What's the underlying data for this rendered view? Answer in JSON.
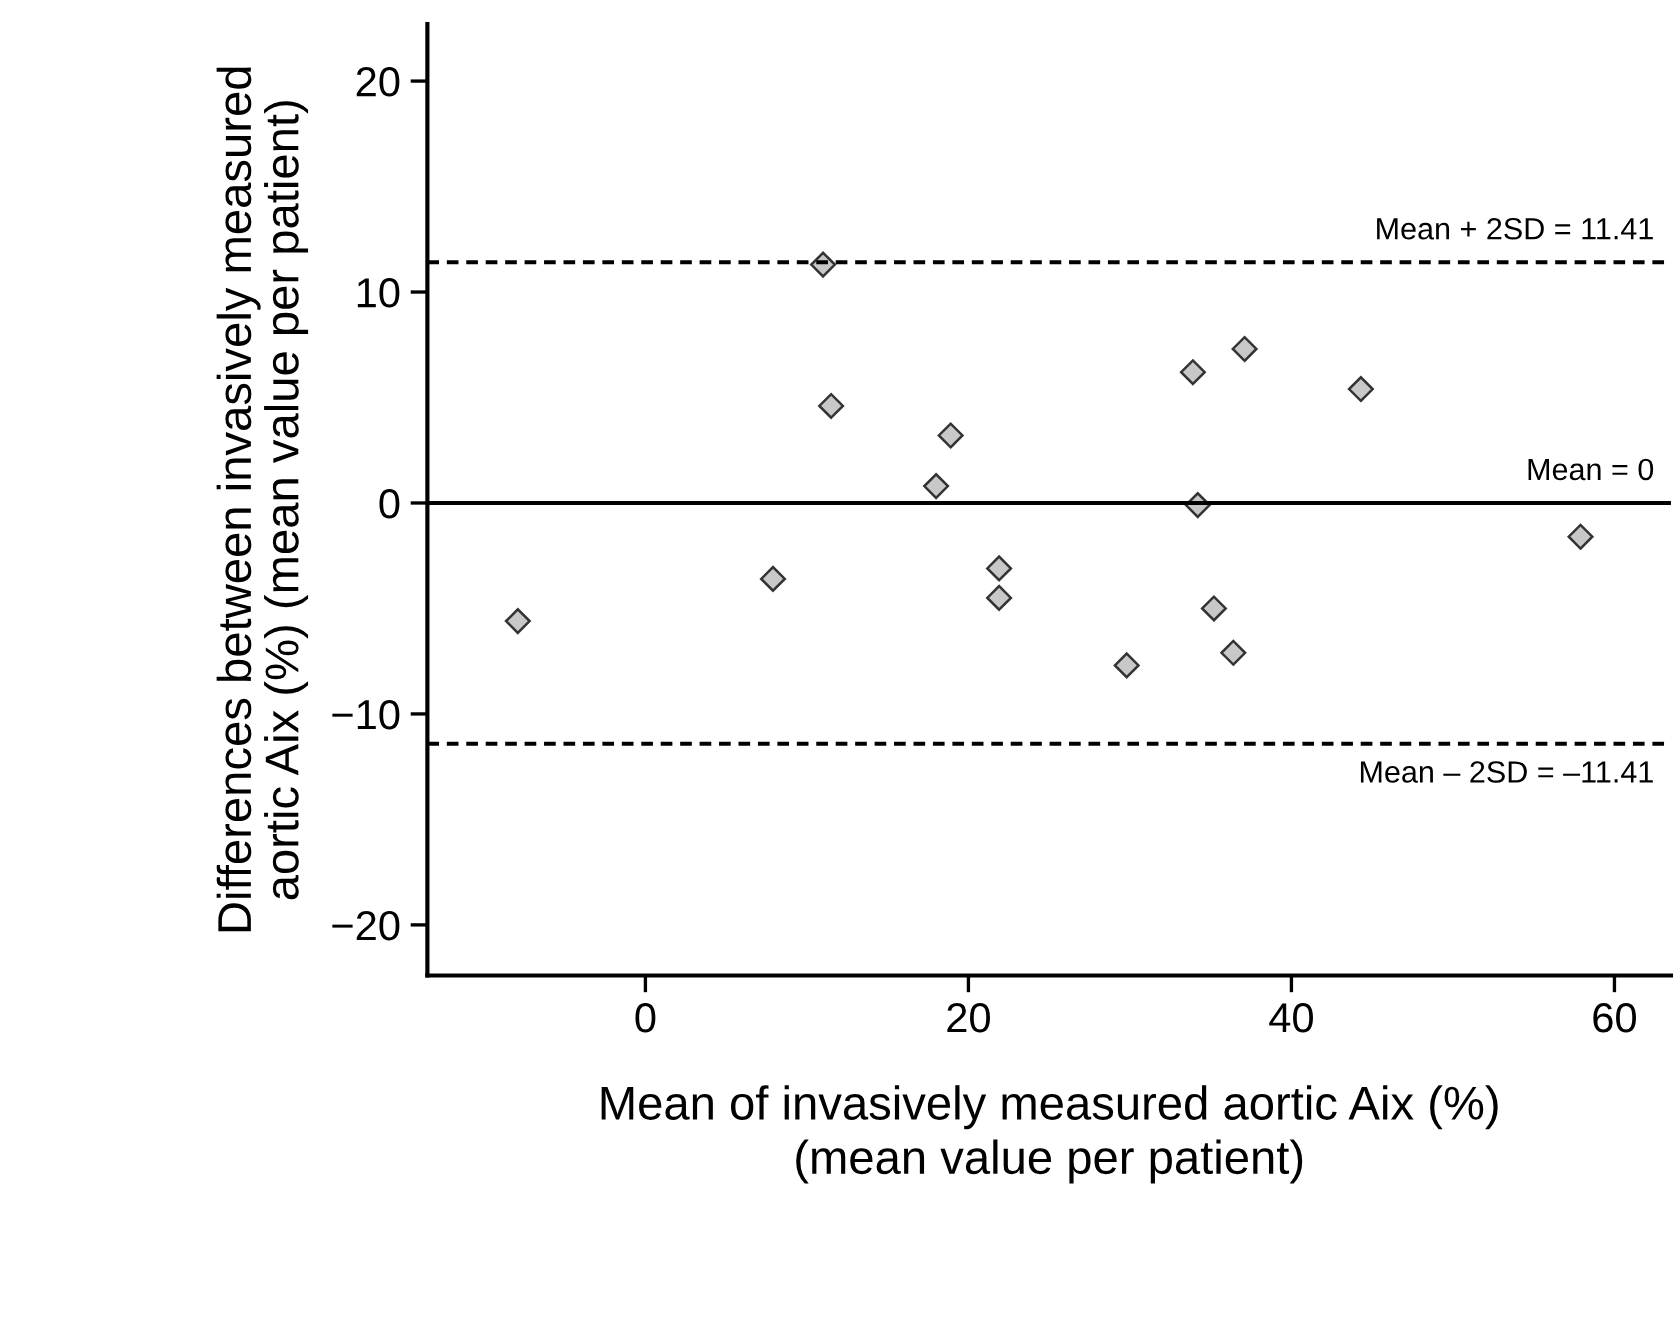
{
  "chart_data": {
    "type": "scatter",
    "xlabel": "Mean of invasively measured aortic Aix (%)\n(mean value per patient)",
    "ylabel": "Differences between invasively measured\naortic Aix (%) (mean value per patient)",
    "x": [
      -7.9,
      7.9,
      11.0,
      11.5,
      18.0,
      18.9,
      21.9,
      21.9,
      29.8,
      33.9,
      34.2,
      35.2,
      36.4,
      37.1,
      44.3,
      57.9
    ],
    "values": [
      -5.6,
      -3.6,
      11.3,
      4.6,
      0.8,
      3.2,
      -3.1,
      -4.5,
      -7.7,
      6.2,
      -0.1,
      -5.0,
      -7.1,
      7.3,
      5.4,
      -1.6
    ],
    "color": "#c8c8c8",
    "marker": "diamond",
    "xlim": [
      -13.5,
      63.5
    ],
    "ylim": [
      -22.4,
      22.7
    ],
    "xticks": [
      0,
      20,
      40,
      60
    ],
    "yticks": [
      -20,
      -10,
      0,
      10,
      20
    ],
    "ref_lines": [
      {
        "axis": "y",
        "value": 11.41,
        "label": "Mean + 2SD = 11.41",
        "line_style": "dashed",
        "color": "#000000"
      },
      {
        "axis": "y",
        "value": 0,
        "label": "Mean = 0",
        "line_style": "solid",
        "color": "#000000"
      },
      {
        "axis": "y",
        "value": -11.41,
        "label": "Mean – 2SD = –11.41",
        "line_style": "dashed",
        "color": "#000000"
      }
    ],
    "grid": false,
    "legend": false
  }
}
